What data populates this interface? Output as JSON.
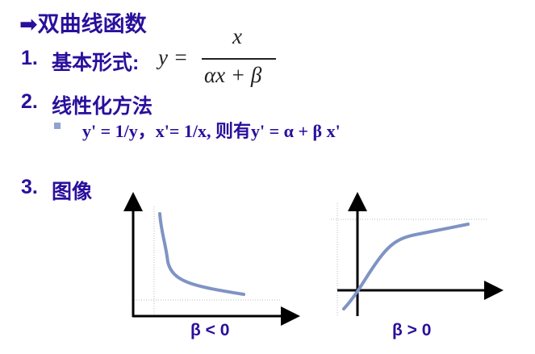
{
  "title": {
    "arrow_icon": "right-arrow-icon",
    "text": "双曲线函数"
  },
  "items": [
    {
      "num": "1.",
      "label": "基本形式:",
      "formula": {
        "lhs": "y =",
        "numerator": "x",
        "denominator": "αx + β"
      }
    },
    {
      "num": "2.",
      "label": "线性化方法",
      "bullet": "y' = 1/y，x'= 1/x, 则有y' = α + β x'"
    },
    {
      "num": "3.",
      "label": "图像"
    }
  ],
  "graphs": [
    {
      "label": "β < 0"
    },
    {
      "label": "β > 0"
    }
  ],
  "colors": {
    "text": "#2a0f9c",
    "curve": "#7f93c4",
    "bullet": "#8fa3cf"
  }
}
